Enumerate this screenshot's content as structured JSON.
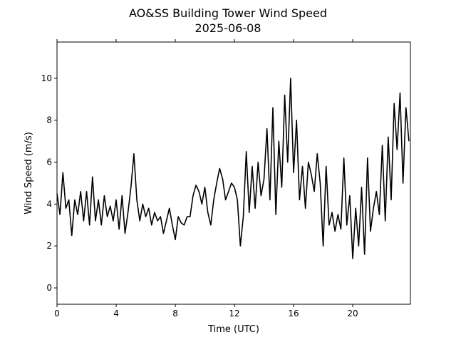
{
  "chart_data": {
    "type": "line",
    "title": "AO&SS Building Tower Wind Speed",
    "subtitle": "2025-06-08",
    "x_label": "Time (UTC)",
    "y_label": "Wind Speed (m/s)",
    "x": [
      0,
      0.2,
      0.4,
      0.6,
      0.8,
      1,
      1.2,
      1.4,
      1.6,
      1.8,
      2,
      2.2,
      2.4,
      2.6,
      2.8,
      3,
      3.2,
      3.4,
      3.6,
      3.8,
      4,
      4.2,
      4.4,
      4.6,
      4.8,
      5,
      5.2,
      5.4,
      5.6,
      5.8,
      6,
      6.2,
      6.4,
      6.6,
      6.8,
      7,
      7.2,
      7.4,
      7.6,
      7.8,
      8,
      8.2,
      8.4,
      8.6,
      8.8,
      9,
      9.2,
      9.4,
      9.6,
      9.8,
      10,
      10.2,
      10.4,
      10.6,
      10.8,
      11,
      11.2,
      11.4,
      11.6,
      11.8,
      12,
      12.2,
      12.4,
      12.6,
      12.8,
      13,
      13.2,
      13.4,
      13.6,
      13.8,
      14,
      14.2,
      14.4,
      14.6,
      14.8,
      15,
      15.2,
      15.4,
      15.6,
      15.8,
      16,
      16.2,
      16.4,
      16.6,
      16.8,
      17,
      17.2,
      17.4,
      17.6,
      17.8,
      18,
      18.2,
      18.4,
      18.6,
      18.8,
      19,
      19.2,
      19.4,
      19.6,
      19.8,
      20,
      20.2,
      20.4,
      20.6,
      20.8,
      21,
      21.2,
      21.4,
      21.6,
      21.8,
      22,
      22.2,
      22.4,
      22.6,
      22.8,
      23,
      23.2,
      23.4,
      23.6,
      23.8
    ],
    "series": [
      {
        "name": "Wind Speed",
        "color": "#000000",
        "values": [
          4.5,
          3.5,
          5.5,
          3.8,
          4.2,
          2.5,
          4.2,
          3.5,
          4.6,
          3.2,
          4.6,
          3.0,
          5.3,
          3.2,
          4.2,
          3.0,
          4.4,
          3.4,
          3.9,
          3.2,
          4.2,
          2.8,
          4.4,
          2.6,
          3.6,
          4.8,
          6.4,
          4.2,
          3.2,
          4.0,
          3.4,
          3.8,
          3.0,
          3.6,
          3.2,
          3.4,
          2.6,
          3.2,
          3.8,
          3.0,
          2.3,
          3.4,
          3.1,
          3.0,
          3.4,
          3.4,
          4.4,
          4.9,
          4.6,
          4.0,
          4.8,
          3.6,
          3.0,
          4.2,
          5.0,
          5.7,
          5.2,
          4.2,
          4.6,
          5.0,
          4.8,
          4.2,
          2.0,
          3.4,
          6.5,
          3.6,
          5.8,
          3.8,
          6.0,
          4.4,
          5.2,
          7.6,
          4.2,
          8.6,
          3.5,
          7.0,
          4.8,
          9.2,
          6.0,
          10.0,
          5.5,
          8.0,
          4.2,
          5.8,
          3.8,
          6.0,
          5.4,
          4.6,
          6.4,
          5.0,
          2.0,
          5.8,
          3.0,
          3.6,
          2.7,
          3.5,
          2.8,
          6.2,
          3.0,
          4.4,
          1.4,
          3.8,
          2.0,
          4.8,
          1.6,
          6.2,
          2.7,
          3.8,
          4.6,
          3.5,
          6.8,
          3.2,
          7.2,
          4.2,
          8.8,
          6.6,
          9.3,
          5.0,
          8.6,
          7.0
        ]
      }
    ],
    "xlim": [
      0,
      23.9
    ],
    "ylim": [
      -0.78,
      11.73
    ],
    "xticks": [
      0,
      4,
      8,
      12,
      16,
      20
    ],
    "yticks": [
      0,
      2,
      4,
      6,
      8,
      10
    ]
  }
}
